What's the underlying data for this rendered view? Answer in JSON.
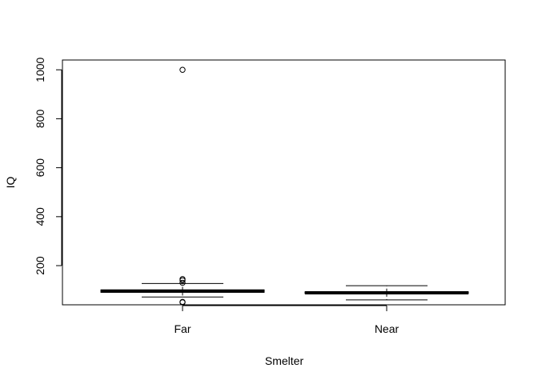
{
  "chart_data": {
    "type": "boxplot",
    "title": "",
    "xlabel": "Smelter",
    "ylabel": "IQ",
    "categories": [
      "Far",
      "Near"
    ],
    "ylim": [
      40,
      1040
    ],
    "yticks": [
      200,
      400,
      600,
      800,
      1000
    ],
    "boxes": [
      {
        "category": "Far",
        "whisker_low": 72,
        "q1": 91,
        "median": 96,
        "q3": 101,
        "whisker_high": 127,
        "outliers": [
          50,
          52,
          130,
          140,
          145,
          1000
        ]
      },
      {
        "category": "Near",
        "whisker_low": 60,
        "q1": 86,
        "median": 89,
        "q3": 93,
        "whisker_high": 118,
        "outliers": []
      }
    ],
    "grid": false,
    "legend": "none"
  }
}
